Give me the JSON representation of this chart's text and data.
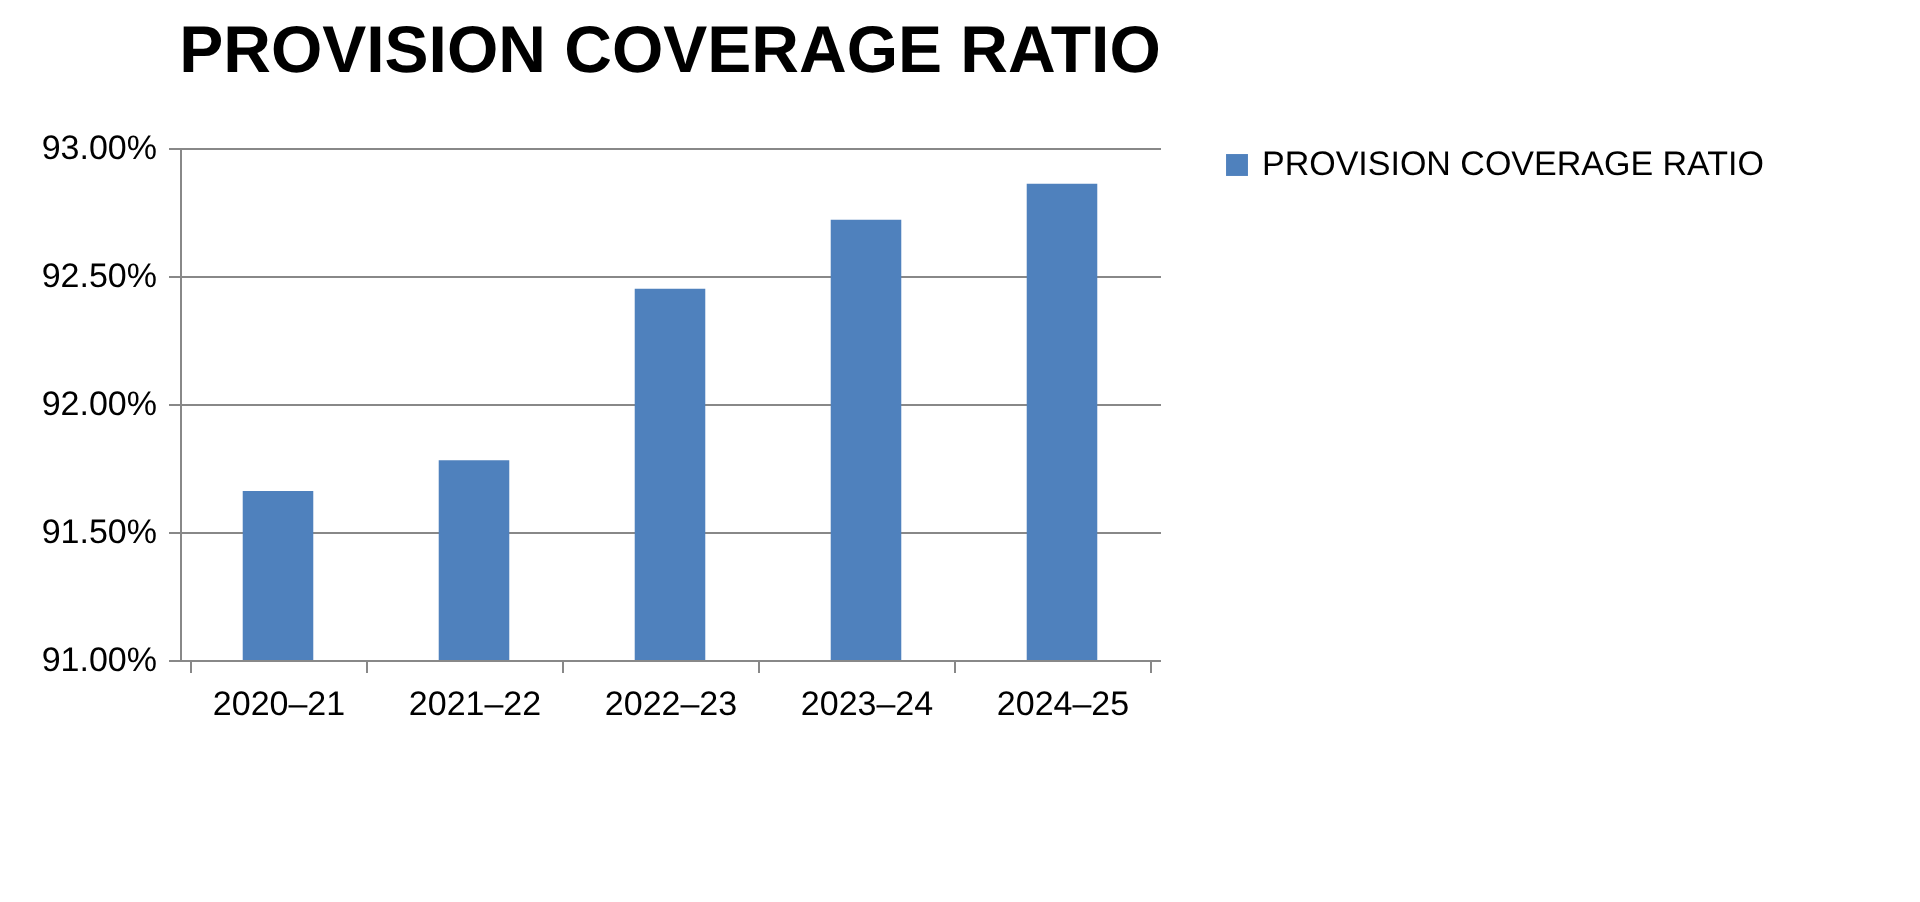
{
  "chart_data": {
    "type": "bar",
    "title": "PROVISION COVERAGE RATIO",
    "categories": [
      "2020–21",
      "2021–22",
      "2022–23",
      "2023–24",
      "2024–25"
    ],
    "series": [
      {
        "name": "PROVISION COVERAGE RATIO",
        "color": "#4f81bd",
        "values": [
          91.66,
          91.78,
          92.45,
          92.72,
          92.86
        ]
      }
    ],
    "ylim": [
      91,
      93
    ],
    "yticks": [
      {
        "value": 91,
        "label": "91.00%"
      },
      {
        "value": 91.5,
        "label": "91.50%"
      },
      {
        "value": 92,
        "label": "92.00%"
      },
      {
        "value": 92.5,
        "label": "92.50%"
      },
      {
        "value": 93,
        "label": "93.00%"
      }
    ],
    "grid": "y",
    "legend": "right"
  }
}
